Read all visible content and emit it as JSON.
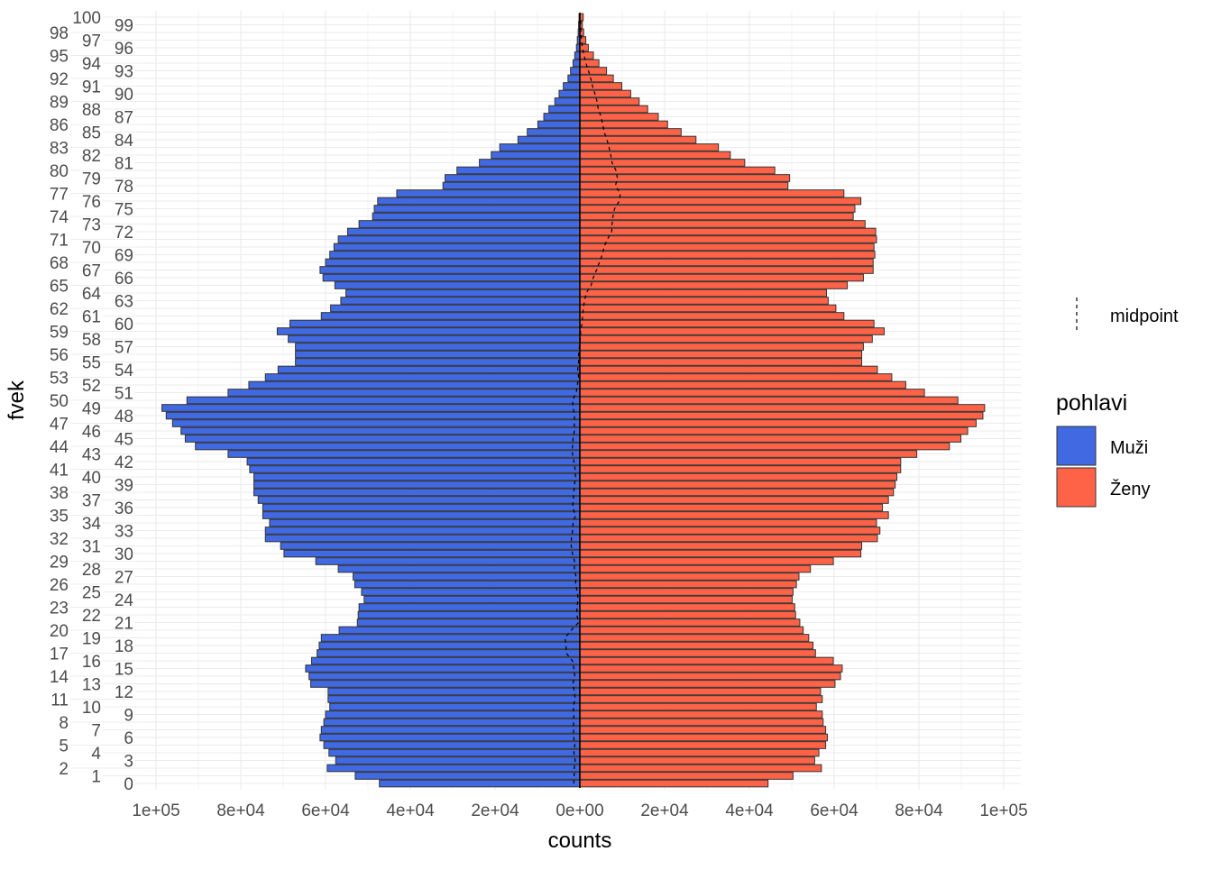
{
  "chart_data": {
    "type": "bar",
    "orientation": "horizontal",
    "subtype": "population-pyramid",
    "xlabel": "counts",
    "ylabel": "fvek",
    "xlim": [
      -100000,
      100000
    ],
    "x_ticks": [
      -100000,
      -80000,
      -60000,
      -40000,
      -20000,
      0,
      20000,
      40000,
      60000,
      80000,
      100000
    ],
    "x_tick_labels": [
      "1e+05",
      "8e+04",
      "6e+04",
      "4e+04",
      "2e+04",
      "0e+00",
      "2e+04",
      "4e+04",
      "6e+04",
      "8e+04",
      "1e+05"
    ],
    "categories": [
      0,
      1,
      2,
      3,
      4,
      5,
      6,
      7,
      8,
      9,
      10,
      11,
      12,
      13,
      14,
      15,
      16,
      17,
      18,
      19,
      20,
      21,
      22,
      23,
      24,
      25,
      26,
      27,
      28,
      29,
      30,
      31,
      32,
      33,
      34,
      35,
      36,
      37,
      38,
      39,
      40,
      41,
      42,
      43,
      44,
      45,
      46,
      47,
      48,
      49,
      50,
      51,
      52,
      53,
      54,
      55,
      56,
      57,
      58,
      59,
      60,
      61,
      62,
      63,
      64,
      65,
      66,
      67,
      68,
      69,
      70,
      71,
      72,
      73,
      74,
      75,
      76,
      77,
      78,
      79,
      80,
      81,
      82,
      83,
      84,
      85,
      86,
      87,
      88,
      89,
      90,
      91,
      92,
      93,
      94,
      95,
      96,
      97,
      98,
      99,
      100
    ],
    "grid": true,
    "legend_position": "right",
    "series": [
      {
        "name": "Muži",
        "color": "#4169E1",
        "side": "left",
        "values": [
          47300,
          53000,
          59600,
          57600,
          59200,
          60400,
          61300,
          61000,
          60400,
          60000,
          59000,
          59400,
          59400,
          63500,
          63900,
          64700,
          63300,
          62000,
          61500,
          61000,
          56800,
          52500,
          52300,
          52100,
          50900,
          51500,
          53100,
          53500,
          57000,
          62300,
          69800,
          70600,
          74200,
          74200,
          73200,
          74800,
          74800,
          75900,
          76900,
          76900,
          76900,
          77900,
          78500,
          83000,
          90700,
          93100,
          94100,
          96100,
          97600,
          98600,
          92700,
          83000,
          78100,
          74200,
          71200,
          67100,
          67100,
          67100,
          68800,
          71400,
          68400,
          61000,
          58800,
          56400,
          55200,
          57800,
          60600,
          61300,
          60000,
          59000,
          58000,
          57000,
          54800,
          52100,
          48900,
          48500,
          47700,
          43200,
          32300,
          31800,
          29000,
          23700,
          20900,
          18900,
          14600,
          12400,
          9900,
          8500,
          7300,
          5900,
          4900,
          3900,
          2800,
          2200,
          1600,
          1200,
          800,
          600,
          400,
          300,
          200
        ]
      },
      {
        "name": "Ženy",
        "color": "#FF6347",
        "side": "right",
        "values": [
          44400,
          50300,
          57000,
          55400,
          56400,
          58000,
          58400,
          58000,
          57400,
          57200,
          55800,
          57200,
          56800,
          60200,
          61500,
          61900,
          59800,
          55600,
          55000,
          54000,
          52700,
          51900,
          50900,
          50700,
          50100,
          50300,
          51100,
          51700,
          54400,
          59800,
          66300,
          66500,
          70200,
          70800,
          70000,
          72800,
          71400,
          72800,
          74000,
          74400,
          74800,
          75700,
          75700,
          79500,
          87200,
          89900,
          91500,
          93500,
          95100,
          95500,
          89200,
          81300,
          76900,
          73600,
          70200,
          66500,
          66500,
          66900,
          69000,
          71800,
          69400,
          62300,
          60400,
          58600,
          58200,
          63100,
          66900,
          69200,
          69200,
          69600,
          69400,
          70000,
          69800,
          67300,
          64500,
          64900,
          66300,
          62300,
          49100,
          49500,
          46000,
          38900,
          35500,
          32700,
          27400,
          23900,
          20700,
          18500,
          16000,
          14000,
          12000,
          9900,
          7900,
          6300,
          4500,
          3200,
          2000,
          1400,
          900,
          600,
          800
        ]
      }
    ],
    "line_series": {
      "name": "midpoint",
      "linetype": "dashed",
      "color": "#000000"
    },
    "legend": {
      "linetype_label": "midpoint",
      "fill_title": "pohlavi",
      "fill_items": [
        "Muži",
        "Ženy"
      ]
    }
  }
}
